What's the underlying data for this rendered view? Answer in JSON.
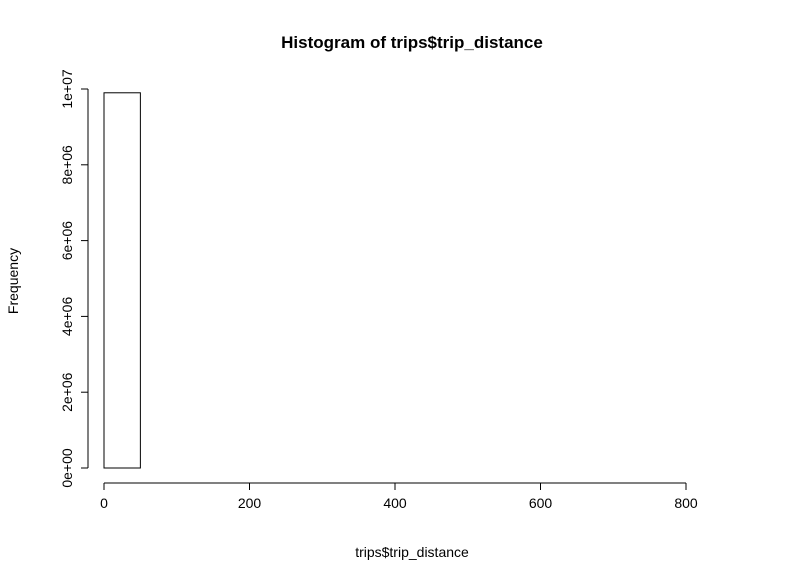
{
  "chart_data": {
    "type": "bar",
    "title": "Histogram of trips$trip_distance",
    "xlabel": "trips$trip_distance",
    "ylabel": "Frequency",
    "xlim": [
      0,
      850
    ],
    "ylim": [
      0,
      10000000
    ],
    "bin_width": 50,
    "bins": [
      {
        "start": 0,
        "end": 50,
        "count": 9900000
      },
      {
        "start": 50,
        "end": 100,
        "count": 0
      },
      {
        "start": 100,
        "end": 150,
        "count": 0
      },
      {
        "start": 150,
        "end": 200,
        "count": 0
      },
      {
        "start": 200,
        "end": 250,
        "count": 0
      },
      {
        "start": 250,
        "end": 300,
        "count": 0
      },
      {
        "start": 300,
        "end": 350,
        "count": 0
      },
      {
        "start": 350,
        "end": 400,
        "count": 0
      },
      {
        "start": 400,
        "end": 450,
        "count": 0
      },
      {
        "start": 450,
        "end": 500,
        "count": 0
      },
      {
        "start": 500,
        "end": 550,
        "count": 0
      },
      {
        "start": 550,
        "end": 600,
        "count": 0
      },
      {
        "start": 600,
        "end": 650,
        "count": 0
      },
      {
        "start": 650,
        "end": 700,
        "count": 0
      },
      {
        "start": 700,
        "end": 750,
        "count": 0
      },
      {
        "start": 750,
        "end": 800,
        "count": 0
      },
      {
        "start": 800,
        "end": 850,
        "count": 0
      }
    ],
    "x_ticks": [
      {
        "value": 0,
        "label": "0"
      },
      {
        "value": 200,
        "label": "200"
      },
      {
        "value": 400,
        "label": "400"
      },
      {
        "value": 600,
        "label": "600"
      },
      {
        "value": 800,
        "label": "800"
      }
    ],
    "y_ticks": [
      {
        "value": 0,
        "label": "0e+00"
      },
      {
        "value": 2000000,
        "label": "2e+06"
      },
      {
        "value": 4000000,
        "label": "4e+06"
      },
      {
        "value": 6000000,
        "label": "6e+06"
      },
      {
        "value": 8000000,
        "label": "8e+06"
      },
      {
        "value": 10000000,
        "label": "1e+07"
      }
    ],
    "grid": false,
    "legend": "none"
  }
}
